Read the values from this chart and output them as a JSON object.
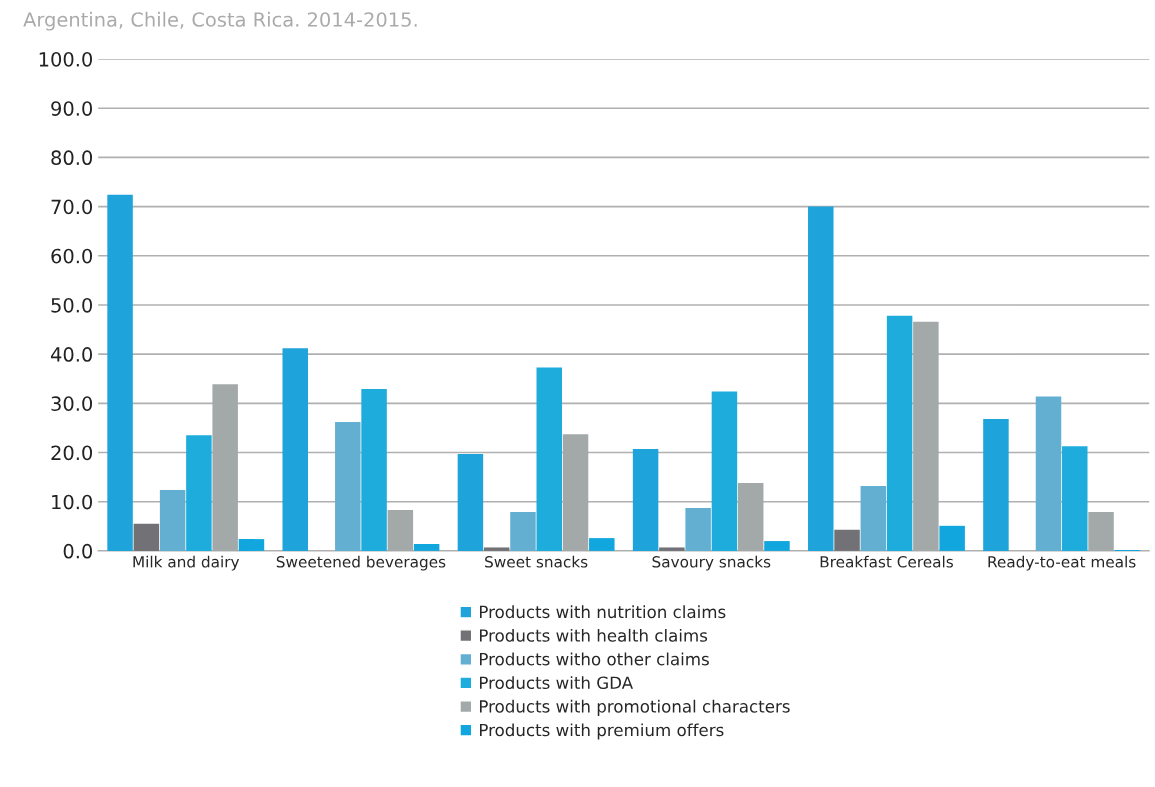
{
  "chart_data": {
    "type": "bar",
    "title": "Argentina, Chile, Costa Rica. 2014-2015.",
    "categories": [
      "Milk and dairy",
      "Sweetened beverages",
      "Sweet snacks",
      "Savoury snacks",
      "Breakfast Cereals",
      "Ready-to-eat meals"
    ],
    "series": [
      {
        "name": "Products with nutrition claims",
        "color": "#1fa3db",
        "values": [
          72.4,
          41.2,
          19.7,
          20.7,
          70.0,
          26.8
        ]
      },
      {
        "name": "Products with health claims",
        "color": "#727176",
        "values": [
          5.5,
          null,
          0.7,
          0.7,
          4.3,
          null
        ]
      },
      {
        "name": "Products witho other claims",
        "color": "#62afd2",
        "values": [
          12.4,
          26.2,
          7.9,
          8.7,
          13.2,
          31.4
        ]
      },
      {
        "name": "Products with GDA",
        "color": "#1dacdb",
        "values": [
          23.5,
          32.9,
          37.3,
          32.4,
          47.8,
          21.3
        ]
      },
      {
        "name": "Products with promotional characters",
        "color": "#a3a8a8",
        "values": [
          33.9,
          8.3,
          23.7,
          13.8,
          46.6,
          7.9
        ]
      },
      {
        "name": "Products with premium offers",
        "color": "#12a6de",
        "values": [
          2.4,
          1.4,
          2.6,
          2.0,
          5.1,
          0.2
        ]
      }
    ],
    "ylim": [
      0,
      100
    ],
    "yticks": [
      {
        "value": 0,
        "label": "0.0"
      },
      {
        "value": 10,
        "label": "10.0"
      },
      {
        "value": 20,
        "label": "20.0"
      },
      {
        "value": 30,
        "label": "30.0"
      },
      {
        "value": 40,
        "label": "40.0"
      },
      {
        "value": 50,
        "label": "50.0"
      },
      {
        "value": 60,
        "label": "60.0"
      },
      {
        "value": 70,
        "label": "70.0"
      },
      {
        "value": 80,
        "label": "80.0"
      },
      {
        "value": 90,
        "label": "90.0"
      },
      {
        "value": 100,
        "label": "100.0"
      }
    ],
    "grid": "y",
    "legend": "bottom"
  }
}
